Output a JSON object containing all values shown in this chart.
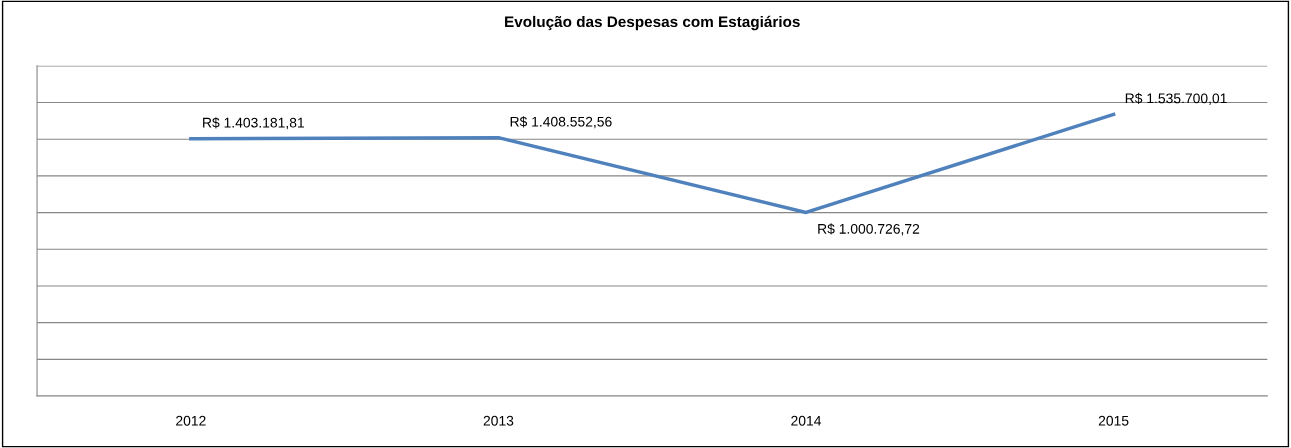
{
  "chart_data": {
    "type": "line",
    "title": "Evolução das Despesas com Estagiários",
    "categories": [
      "2012",
      "2013",
      "2014",
      "2015"
    ],
    "series": [
      {
        "color": "#4f81bd",
        "values": [
          1403181.81,
          1408552.56,
          1000726.72,
          1535700.01
        ],
        "value_labels": [
          "R$ 1.403.181,81",
          "R$ 1.408.552,56",
          "R$ 1.000.726,72",
          "R$ 1.535.700,01"
        ]
      }
    ],
    "ylim": [
      0,
      1800000
    ],
    "yticks": [
      {
        "value": 0,
        "label": null
      },
      {
        "value": 200000,
        "label": null
      },
      {
        "value": 400000,
        "label": null
      },
      {
        "value": 600000,
        "label": null
      },
      {
        "value": 800000,
        "label": null
      },
      {
        "value": 1000000,
        "label": null
      },
      {
        "value": 1200000,
        "label": null
      },
      {
        "value": 1400000,
        "label": null
      },
      {
        "value": 1600000,
        "label": null
      },
      {
        "value": 1800000,
        "label": null
      }
    ],
    "grid": "y",
    "tick_labels": "x",
    "legend": false,
    "marker": "none",
    "line_style": "solid"
  }
}
